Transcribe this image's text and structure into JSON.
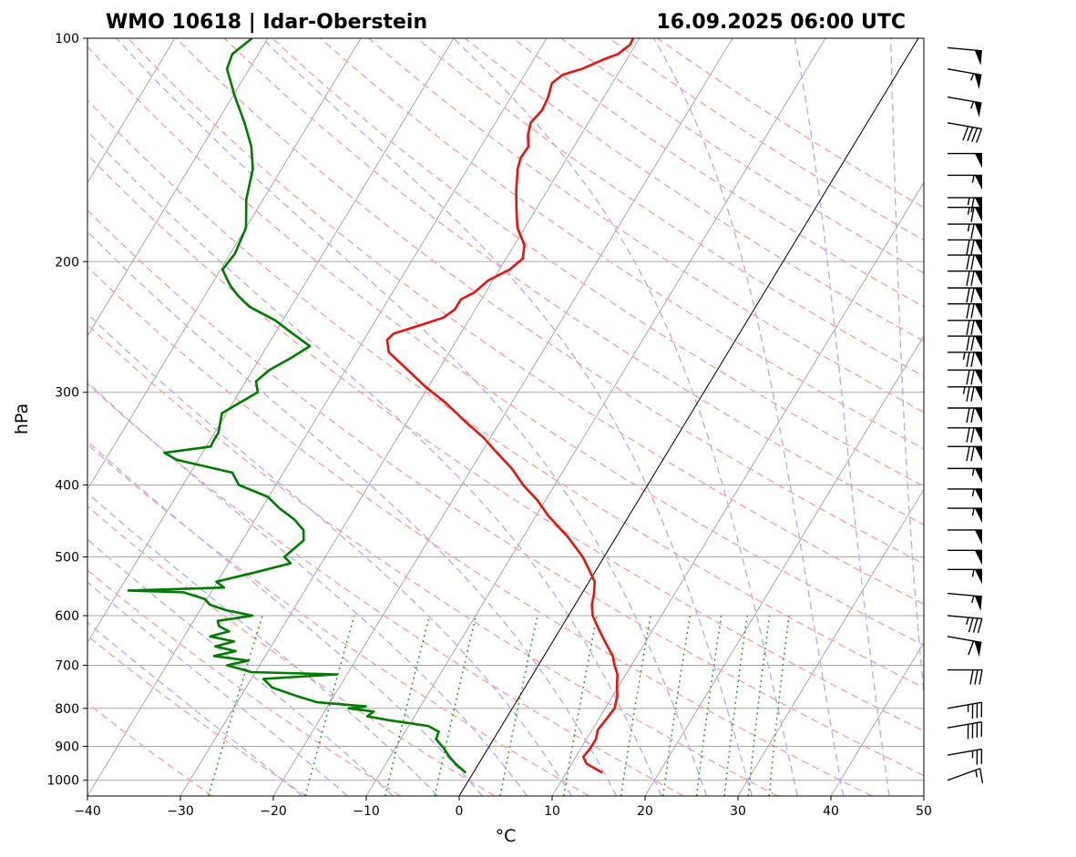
{
  "header": {
    "station": "WMO 10618 | Idar-Oberstein",
    "time": "16.09.2025 06:00 UTC"
  },
  "chart_data": {
    "type": "line",
    "subtype": "skew-T log-p sounding",
    "xlabel": "°C",
    "ylabel": "hPa",
    "xlim": [
      -40,
      50
    ],
    "ylim": [
      1050,
      100
    ],
    "y_scale": "log",
    "x_ticks": [
      "−40",
      "−30",
      "−20",
      "−10",
      "0",
      "10",
      "20",
      "30",
      "40",
      "50"
    ],
    "y_ticks": [
      "100",
      "200",
      "300",
      "400",
      "500",
      "600",
      "700",
      "800",
      "900",
      "1000"
    ],
    "grid": true,
    "colors": {
      "temperature": "#e8120f",
      "dewpoint": "#007a00",
      "dry_adiabat": "#f4a6a6",
      "moist_adiabat": "#b2b2f0",
      "mixing_ratio": "#3a9e3a",
      "isotherm": "#888888",
      "isobar": "#aaaaaa"
    },
    "series": [
      {
        "key": "temperature",
        "pressure": [
          977,
          950,
          930,
          905,
          880,
          855,
          830,
          800,
          770,
          750,
          720,
          700,
          680,
          660,
          640,
          620,
          600,
          580,
          560,
          540,
          520,
          500,
          470,
          440,
          420,
          400,
          380,
          360,
          345,
          330,
          310,
          295,
          280,
          265,
          255,
          250,
          245,
          238,
          232,
          225,
          220,
          212,
          205,
          198,
          190,
          180,
          170,
          160,
          150,
          145,
          140,
          135,
          130,
          125,
          120,
          115,
          112,
          110,
          107,
          105,
          102,
          100
        ],
        "temp": [
          13.9,
          11.6,
          10.8,
          11.0,
          11.0,
          10.6,
          10.8,
          11.0,
          10.5,
          9.9,
          9.1,
          8.2,
          7.4,
          6.2,
          5.0,
          3.8,
          2.6,
          1.8,
          1.3,
          0.6,
          -0.8,
          -2.3,
          -5.2,
          -8.7,
          -10.8,
          -13.4,
          -15.7,
          -18.6,
          -20.8,
          -23.5,
          -27.1,
          -30.3,
          -33.3,
          -36.5,
          -37.5,
          -37.2,
          -35.4,
          -32.9,
          -32.2,
          -32.2,
          -31.2,
          -30.5,
          -28.9,
          -28.2,
          -28.9,
          -30.8,
          -32.1,
          -33.4,
          -34.6,
          -35.0,
          -34.9,
          -35.7,
          -36.2,
          -35.8,
          -36.0,
          -36.5,
          -35.9,
          -34.2,
          -32.6,
          -31.3,
          -30.6,
          -30.7
        ]
      },
      {
        "key": "dewpoint",
        "pressure": [
          977,
          950,
          930,
          905,
          880,
          860,
          845,
          830,
          820,
          808,
          800,
          795,
          785,
          770,
          750,
          730,
          720,
          715,
          700,
          690,
          680,
          670,
          660,
          650,
          640,
          630,
          620,
          610,
          600,
          590,
          580,
          570,
          558,
          555,
          550,
          540,
          525,
          510,
          500,
          490,
          475,
          460,
          445,
          430,
          415,
          400,
          385,
          370,
          362,
          355,
          350,
          340,
          320,
          300,
          290,
          280,
          270,
          260,
          250,
          240,
          230,
          222,
          215,
          205,
          195,
          180,
          165,
          150,
          140,
          130,
          120,
          110,
          105,
          100
        ],
        "temp": [
          -0.8,
          -2.5,
          -3.6,
          -4.8,
          -6.2,
          -6.4,
          -7.9,
          -12.5,
          -15.1,
          -14.7,
          -17.6,
          -15.9,
          -21.4,
          -24.0,
          -27.2,
          -28.7,
          -21.1,
          -30.4,
          -33.5,
          -31.5,
          -35.5,
          -33.5,
          -36.0,
          -34.3,
          -37.2,
          -35.5,
          -36.9,
          -37.4,
          -34.0,
          -37.2,
          -39.3,
          -40.2,
          -43.0,
          -49.0,
          -38.9,
          -40.1,
          -36.6,
          -33.3,
          -34.4,
          -34.0,
          -33.4,
          -34.1,
          -35.8,
          -38.1,
          -40.1,
          -44.0,
          -45.5,
          -52.3,
          -54.1,
          -49.5,
          -49.6,
          -49.6,
          -50.5,
          -48.0,
          -48.9,
          -48.2,
          -46.7,
          -45.4,
          -48.1,
          -50.8,
          -54.5,
          -56.5,
          -58.0,
          -59.8,
          -59.5,
          -60.0,
          -61.8,
          -63.1,
          -64.7,
          -67.0,
          -69.7,
          -72.4,
          -72.8,
          -71.7
        ]
      }
    ],
    "wind_barbs": [
      {
        "p": 1000,
        "dir": 70,
        "spd": 15
      },
      {
        "p": 925,
        "dir": 80,
        "spd": 25
      },
      {
        "p": 850,
        "dir": 80,
        "spd": 40
      },
      {
        "p": 800,
        "dir": 80,
        "spd": 35
      },
      {
        "p": 710,
        "dir": 90,
        "spd": 30
      },
      {
        "p": 640,
        "dir": 100,
        "spd": 60
      },
      {
        "p": 600,
        "dir": 95,
        "spd": 35
      },
      {
        "p": 560,
        "dir": 95,
        "spd": 55
      },
      {
        "p": 520,
        "dir": 90,
        "spd": 55
      },
      {
        "p": 490,
        "dir": 90,
        "spd": 50
      },
      {
        "p": 460,
        "dir": 90,
        "spd": 50
      },
      {
        "p": 430,
        "dir": 90,
        "spd": 55
      },
      {
        "p": 405,
        "dir": 90,
        "spd": 55
      },
      {
        "p": 380,
        "dir": 90,
        "spd": 55
      },
      {
        "p": 355,
        "dir": 90,
        "spd": 70
      },
      {
        "p": 335,
        "dir": 90,
        "spd": 70
      },
      {
        "p": 315,
        "dir": 90,
        "spd": 70
      },
      {
        "p": 295,
        "dir": 90,
        "spd": 75
      },
      {
        "p": 280,
        "dir": 90,
        "spd": 70
      },
      {
        "p": 265,
        "dir": 90,
        "spd": 75
      },
      {
        "p": 252,
        "dir": 90,
        "spd": 70
      },
      {
        "p": 240,
        "dir": 90,
        "spd": 70
      },
      {
        "p": 228,
        "dir": 90,
        "spd": 70
      },
      {
        "p": 217,
        "dir": 90,
        "spd": 70
      },
      {
        "p": 206,
        "dir": 90,
        "spd": 70
      },
      {
        "p": 196,
        "dir": 90,
        "spd": 70
      },
      {
        "p": 187,
        "dir": 90,
        "spd": 70
      },
      {
        "p": 178,
        "dir": 90,
        "spd": 65
      },
      {
        "p": 169,
        "dir": 90,
        "spd": 65
      },
      {
        "p": 164,
        "dir": 90,
        "spd": 65
      },
      {
        "p": 153,
        "dir": 90,
        "spd": 55
      },
      {
        "p": 143,
        "dir": 90,
        "spd": 50
      },
      {
        "p": 130,
        "dir": 100,
        "spd": 40
      },
      {
        "p": 120,
        "dir": 100,
        "spd": 55
      },
      {
        "p": 110,
        "dir": 100,
        "spd": 55
      },
      {
        "p": 103,
        "dir": 95,
        "spd": 50
      }
    ]
  }
}
